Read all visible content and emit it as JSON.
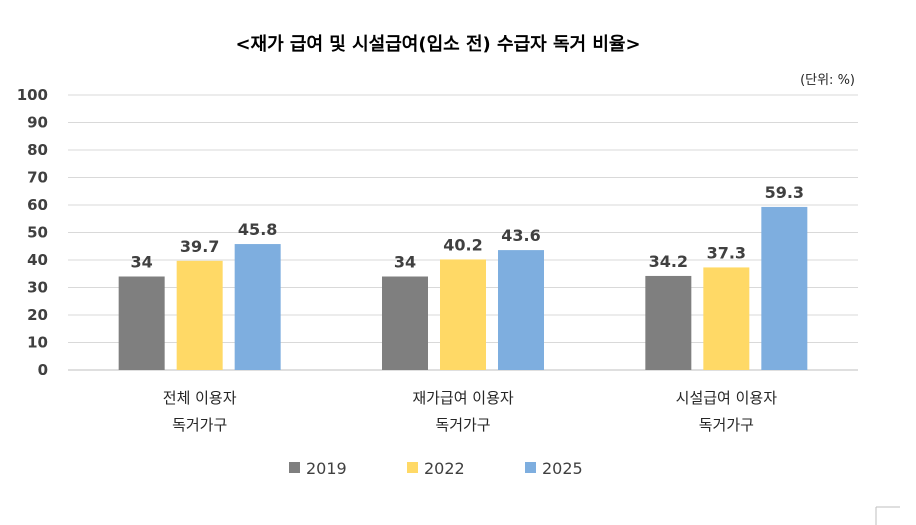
{
  "chart_data": {
    "type": "bar",
    "title": "<재가 급여 및 시설급여(입소 전) 수급자 독거 비율>",
    "unit_label": "(단위: %)",
    "categories": [
      [
        "전체 이용자",
        "독거가구"
      ],
      [
        "재가급여 이용자",
        "독거가구"
      ],
      [
        "시설급여 이용자",
        "독거가구"
      ]
    ],
    "series": [
      {
        "name": "2019",
        "color": "#7f7f7f",
        "values": [
          34,
          34,
          34.2
        ]
      },
      {
        "name": "2022",
        "color": "#ffd966",
        "values": [
          39.7,
          40.2,
          37.3
        ]
      },
      {
        "name": "2025",
        "color": "#7eaedf",
        "values": [
          45.8,
          43.6,
          59.3
        ]
      }
    ],
    "ylim": [
      0,
      100
    ],
    "yticks": [
      0,
      10,
      20,
      30,
      40,
      50,
      60,
      70,
      80,
      90,
      100
    ],
    "grid": true,
    "legend_position": "bottom"
  }
}
